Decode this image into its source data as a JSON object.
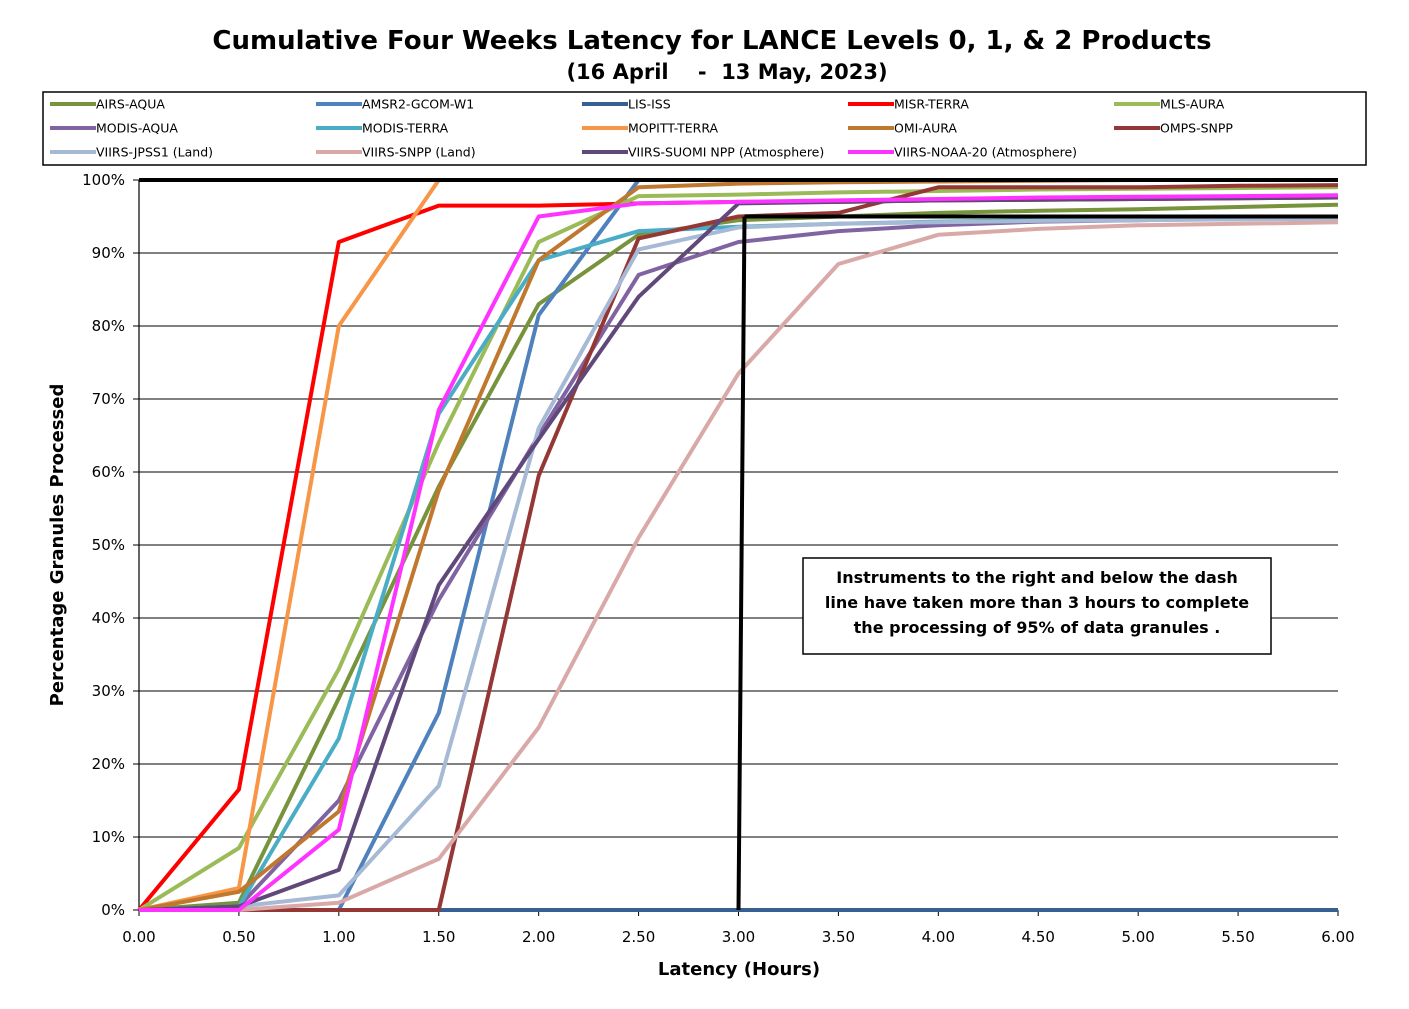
{
  "chart_data": {
    "type": "line",
    "title": "Cumulative Four Weeks Latency for LANCE Levels 0, 1, & 2 Products",
    "subtitle": "(16 April    -  13 May, 2023)",
    "xlabel": "Latency (Hours)",
    "ylabel": "Percentage Granules Processed",
    "xlim": [
      0,
      6
    ],
    "ylim": [
      0,
      100
    ],
    "x_ticks": [
      "0.00",
      "0.50",
      "1.00",
      "1.50",
      "2.00",
      "2.50",
      "3.00",
      "3.50",
      "4.00",
      "4.50",
      "5.00",
      "5.50",
      "6.00"
    ],
    "y_ticks": [
      "0%",
      "10%",
      "20%",
      "30%",
      "40%",
      "50%",
      "60%",
      "70%",
      "80%",
      "90%",
      "100%"
    ],
    "grid": "horizontal",
    "legend_position": "top",
    "x": [
      0,
      0.5,
      1,
      1.5,
      2,
      2.5,
      3,
      3.5,
      4,
      4.5,
      5,
      5.5,
      6
    ],
    "series": [
      {
        "name": "AIRS-AQUA",
        "color": "#77933C",
        "values": [
          0,
          1,
          29,
          58,
          83,
          92.5,
          94.5,
          95,
          95.5,
          95.8,
          96,
          96.3,
          96.6
        ]
      },
      {
        "name": "AMSR2-GCOM-W1",
        "color": "#4F81BD",
        "values": [
          0,
          0,
          0,
          27,
          81.5,
          100,
          100,
          100,
          100,
          100,
          100,
          100,
          100
        ]
      },
      {
        "name": "LIS-ISS",
        "color": "#366092",
        "values": [
          0,
          0,
          0,
          0,
          0,
          0,
          0,
          0,
          0,
          0,
          0,
          0,
          0
        ]
      },
      {
        "name": "MISR-TERRA",
        "color": "#FF0000",
        "values": [
          0,
          16.5,
          91.5,
          96.5,
          96.5,
          96.8,
          97,
          97,
          97.2,
          97.3,
          97.4,
          97.5,
          97.6
        ]
      },
      {
        "name": "MLS-AURA",
        "color": "#9BBB59",
        "values": [
          0,
          8.5,
          33,
          64,
          91.5,
          97.8,
          98,
          98.3,
          98.5,
          98.7,
          98.8,
          98.9,
          99
        ]
      },
      {
        "name": "MODIS-AQUA",
        "color": "#8064A2",
        "values": [
          0,
          0.5,
          15,
          42.5,
          65,
          87,
          91.5,
          93,
          93.8,
          94.3,
          94.5,
          94.7,
          94.8
        ]
      },
      {
        "name": "MODIS-TERRA",
        "color": "#4BACC6",
        "values": [
          0,
          0.5,
          23.5,
          68,
          89,
          93,
          93.6,
          94,
          94.3,
          94.5,
          94.6,
          94.7,
          94.8
        ]
      },
      {
        "name": "MOPITT-TERRA",
        "color": "#F79646",
        "values": [
          0,
          3,
          80,
          100,
          100,
          100,
          100,
          100,
          100,
          100,
          100,
          100,
          100
        ]
      },
      {
        "name": "OMI-AURA",
        "color": "#C0782E",
        "values": [
          0,
          2.5,
          13.5,
          57.5,
          89,
          99,
          99.5,
          99.7,
          99.8,
          99.9,
          100,
          100,
          100
        ]
      },
      {
        "name": "OMPS-SNPP",
        "color": "#953735",
        "values": [
          0,
          0,
          0,
          0,
          59.5,
          92,
          95,
          95.5,
          99,
          99,
          99,
          99.2,
          99.3
        ]
      },
      {
        "name": "VIIRS-JPSS1 (Land)",
        "color": "#A6B9D5",
        "values": [
          0,
          0.5,
          2,
          17,
          66,
          90.5,
          93.5,
          94,
          94.2,
          94.4,
          94.5,
          94.6,
          94.7
        ]
      },
      {
        "name": "VIIRS-SNPP (Land)",
        "color": "#D9A9A8",
        "values": [
          0,
          0,
          1,
          7,
          25,
          51,
          73.5,
          88.5,
          92.5,
          93.3,
          93.8,
          94,
          94.2
        ]
      },
      {
        "name": "VIIRS-SUOMI NPP (Atmosphere)",
        "color": "#60497A",
        "values": [
          0,
          0.5,
          5.5,
          44.5,
          64.5,
          84,
          96.8,
          97,
          97.2,
          97.3,
          97.4,
          97.5,
          97.6
        ]
      },
      {
        "name": "VIIRS-NOAA-20 (Atmosphere)",
        "color": "#FF33FF",
        "values": [
          0,
          0,
          11,
          68.5,
          95,
          96.8,
          97,
          97.2,
          97.4,
          97.6,
          97.7,
          97.8,
          97.9
        ]
      }
    ],
    "threshold_lines": [
      {
        "x": [
          0,
          6
        ],
        "y": [
          100,
          100
        ]
      },
      {
        "x": [
          3,
          3.03
        ],
        "y": [
          0,
          95
        ]
      },
      {
        "x": [
          3.03,
          6
        ],
        "y": [
          95,
          95
        ]
      }
    ],
    "annotation": [
      "Instruments to the right and below the dash",
      "line have taken more than 3 hours to complete",
      "the processing of 95% of data granules ."
    ]
  }
}
